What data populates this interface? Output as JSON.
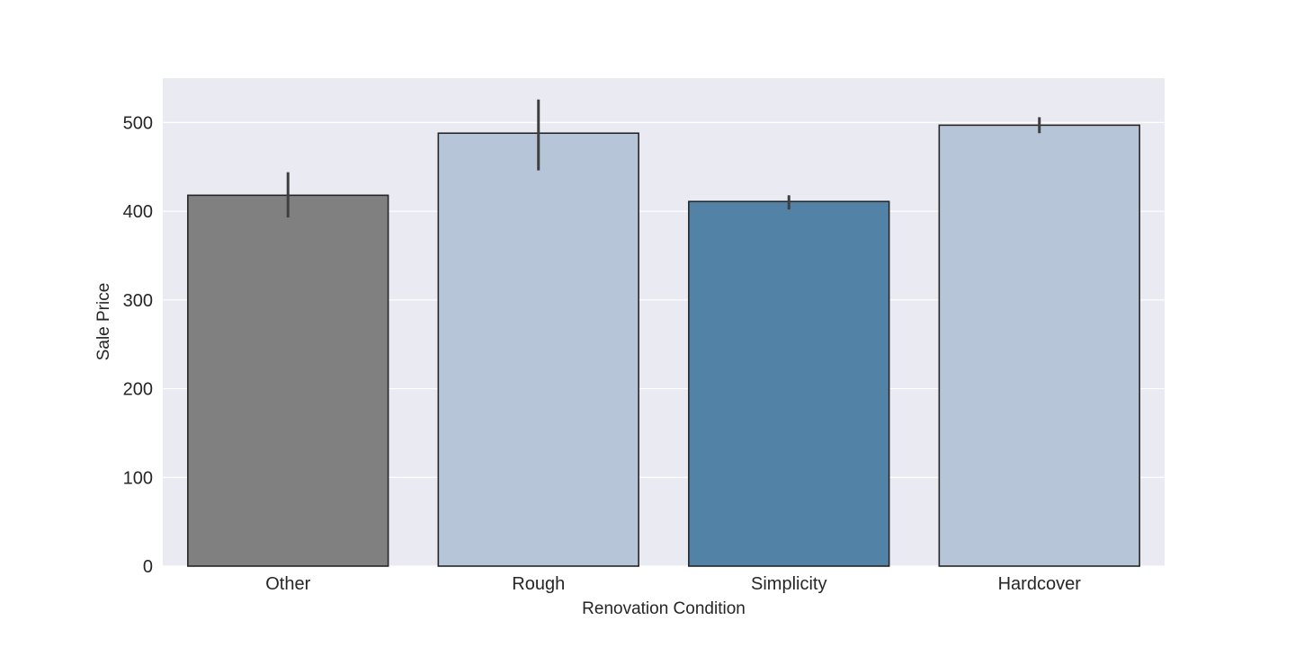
{
  "chart_data": {
    "type": "bar",
    "title": "",
    "xlabel": "Renovation Condition",
    "ylabel": "Sale Price",
    "categories": [
      "Other",
      "Rough",
      "Simplicity",
      "Hardcover"
    ],
    "values": [
      418,
      488,
      411,
      497
    ],
    "error_bars": [
      {
        "low": 393,
        "high": 444
      },
      {
        "low": 446,
        "high": 526
      },
      {
        "low": 402,
        "high": 418
      },
      {
        "low": 488,
        "high": 506
      }
    ],
    "bar_colors": [
      "#808080",
      "#b6c5d8",
      "#5382a7",
      "#b6c5d8"
    ],
    "ylim": [
      0,
      550
    ],
    "yticks": [
      0,
      100,
      200,
      300,
      400,
      500
    ],
    "grid": true,
    "legend": "none"
  },
  "style": {
    "plot_background": "#eaeaf2",
    "grid_color": "#ffffff",
    "bar_edge": "#262626",
    "errorbar_color": "#3f3f3f"
  }
}
